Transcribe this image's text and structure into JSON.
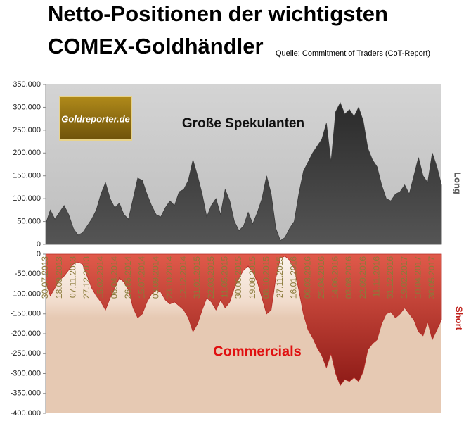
{
  "chart_data": {
    "type": "area",
    "title_lines": [
      "Netto-Positionen der wichtigsten",
      "COMEX-Goldhändler"
    ],
    "source": "Quelle: Commitment of Traders (CoT-Report)",
    "logo": "Goldreporter.de",
    "ylabel": "Long",
    "y2label": "Short",
    "categories": [
      "30.07.2013",
      null,
      null,
      "18.09.2013",
      null,
      null,
      "07.11.2013",
      null,
      null,
      "27.12.2013",
      null,
      null,
      "15.02.2014",
      null,
      null,
      "06.04.2014",
      null,
      null,
      "26.05.2014",
      null,
      null,
      "15.07.2014",
      null,
      null,
      "03.09.2014",
      null,
      null,
      "23.10.2014",
      null,
      null,
      "12.12.2014",
      null,
      null,
      "31.01.2015",
      null,
      null,
      "22.03.2015",
      null,
      null,
      "11.05.2015",
      null,
      null,
      "30.06.2015",
      null,
      null,
      "19.08.2015",
      null,
      null,
      "08.10.2015",
      null,
      null,
      "27.11.2015",
      null,
      null,
      "16.01.2016",
      null,
      null,
      "06.03.2016",
      null,
      null,
      "25.04.2016",
      null,
      null,
      "14.06.2016",
      null,
      null,
      "03.08.2016",
      null,
      null,
      "22.09.2016",
      null,
      null,
      "11.11.2016",
      null,
      null,
      "31.12.2016",
      null,
      null,
      "19.02.2017",
      null,
      null,
      "10.04.2017",
      null,
      null,
      "30.05.2017",
      null,
      null
    ],
    "series": [
      {
        "name": "Große Spekulanten",
        "color": "#3a3a3a",
        "axis": "y",
        "values": [
          45000,
          75000,
          55000,
          70000,
          85000,
          65000,
          35000,
          20000,
          25000,
          40000,
          55000,
          75000,
          110000,
          135000,
          100000,
          80000,
          90000,
          65000,
          55000,
          100000,
          145000,
          140000,
          110000,
          85000,
          65000,
          60000,
          80000,
          95000,
          85000,
          115000,
          120000,
          140000,
          185000,
          150000,
          110000,
          60000,
          85000,
          100000,
          65000,
          120000,
          95000,
          50000,
          30000,
          40000,
          70000,
          45000,
          70000,
          100000,
          150000,
          110000,
          35000,
          8000,
          15000,
          35000,
          50000,
          110000,
          160000,
          180000,
          200000,
          215000,
          230000,
          265000,
          180000,
          290000,
          310000,
          285000,
          295000,
          280000,
          300000,
          270000,
          210000,
          185000,
          170000,
          130000,
          100000,
          95000,
          110000,
          115000,
          130000,
          110000,
          150000,
          190000,
          150000,
          135000,
          200000,
          170000,
          130000
        ]
      },
      {
        "name": "Commercials",
        "color": "#b52a25",
        "axis": "y2",
        "values": [
          -70000,
          -105000,
          -85000,
          -65000,
          -55000,
          -40000,
          -25000,
          -20000,
          -25000,
          -55000,
          -85000,
          -105000,
          -120000,
          -140000,
          -110000,
          -85000,
          -60000,
          -70000,
          -90000,
          -135000,
          -160000,
          -150000,
          -120000,
          -100000,
          -90000,
          -95000,
          -115000,
          -125000,
          -120000,
          -130000,
          -140000,
          -160000,
          -195000,
          -175000,
          -140000,
          -110000,
          -120000,
          -140000,
          -115000,
          -135000,
          -120000,
          -85000,
          -60000,
          -40000,
          -30000,
          -45000,
          -70000,
          -110000,
          -150000,
          -140000,
          -60000,
          -10000,
          -5000,
          -15000,
          -35000,
          -90000,
          -150000,
          -190000,
          -210000,
          -235000,
          -255000,
          -285000,
          -250000,
          -300000,
          -330000,
          -315000,
          -320000,
          -310000,
          -320000,
          -295000,
          -240000,
          -225000,
          -215000,
          -175000,
          -150000,
          -145000,
          -160000,
          -150000,
          -135000,
          -150000,
          -165000,
          -195000,
          -205000,
          -170000,
          -215000,
          -190000,
          -165000
        ]
      }
    ],
    "ylim": [
      0,
      350000
    ],
    "yticks": [
      0,
      {
        "value": 50000,
        "label": "50.000"
      },
      {
        "value": 100000,
        "label": "100.000"
      },
      {
        "value": 150000,
        "label": "150.000"
      },
      {
        "value": 200000,
        "label": "200.000"
      },
      {
        "value": 250000,
        "label": "250.000"
      },
      {
        "value": 300000,
        "label": "300.000"
      },
      {
        "value": 350000,
        "label": "350.000"
      }
    ],
    "y2lim": [
      -400000,
      0
    ],
    "y2ticks": [
      0,
      {
        "value": -50000,
        "label": "-50.000"
      },
      {
        "value": -100000,
        "label": "-100.000"
      },
      {
        "value": -150000,
        "label": "-150.000"
      },
      {
        "value": -200000,
        "label": "-200.000"
      },
      {
        "value": -250000,
        "label": "-250.000"
      },
      {
        "value": -300000,
        "label": "-300.000"
      },
      {
        "value": -350000,
        "label": "-350.000"
      },
      {
        "value": -400000,
        "label": "-400.000"
      }
    ]
  }
}
